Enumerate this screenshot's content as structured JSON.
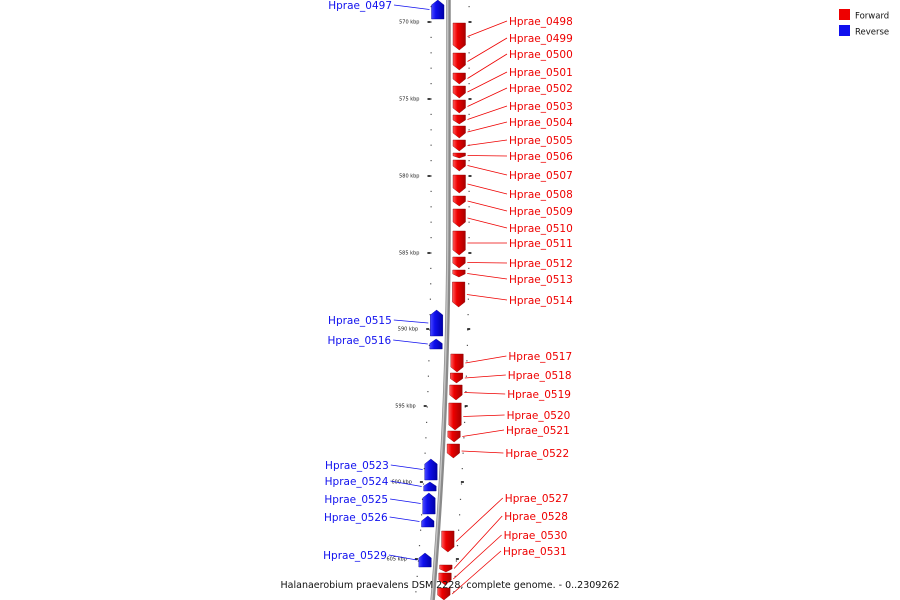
{
  "legend": {
    "forward_label": "Forward",
    "reverse_label": "Reverse",
    "forward_color": "#ee0000",
    "reverse_color": "#1010ee"
  },
  "caption": "Halanaerobium praevalens DSM 2228, complete genome. - 0..2309262",
  "ticks": [
    "570 kbp",
    "575 kbp",
    "580 kbp",
    "585 kbp",
    "590 kbp",
    "595 kbp",
    "600 kbp",
    "605 kbp"
  ],
  "forward_genes": [
    "Hprae_0498",
    "Hprae_0499",
    "Hprae_0500",
    "Hprae_0501",
    "Hprae_0502",
    "Hprae_0503",
    "Hprae_0504",
    "Hprae_0505",
    "Hprae_0506",
    "Hprae_0507",
    "Hprae_0508",
    "Hprae_0509",
    "Hprae_0510",
    "Hprae_0511",
    "Hprae_0512",
    "Hprae_0513",
    "Hprae_0514",
    "Hprae_0517",
    "Hprae_0518",
    "Hprae_0519",
    "Hprae_0520",
    "Hprae_0521",
    "Hprae_0522",
    "Hprae_0527",
    "Hprae_0528",
    "Hprae_0530",
    "Hprae_0531"
  ],
  "reverse_genes": [
    "Hprae_0497",
    "Hprae_0515",
    "Hprae_0516",
    "Hprae_0523",
    "Hprae_0524",
    "Hprae_0525",
    "Hprae_0526",
    "Hprae_0529"
  ]
}
